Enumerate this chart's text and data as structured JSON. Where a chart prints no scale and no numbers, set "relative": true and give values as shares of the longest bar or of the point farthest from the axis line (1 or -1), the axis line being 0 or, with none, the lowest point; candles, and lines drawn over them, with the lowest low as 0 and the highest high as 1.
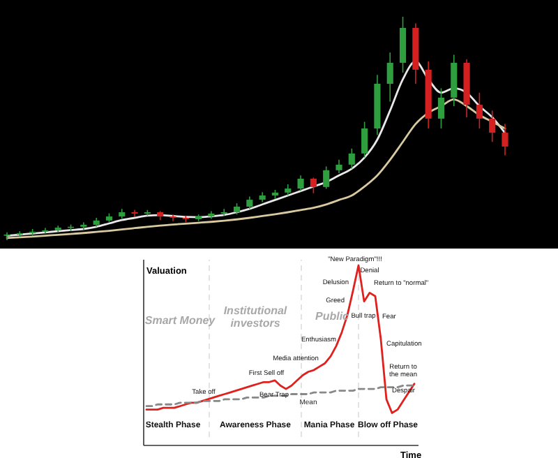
{
  "chart_data": [
    {
      "type": "candlestick",
      "relative": true,
      "categories": [
        null,
        null,
        null,
        null,
        null,
        null,
        null,
        null,
        null,
        null,
        null,
        null,
        null,
        null,
        null,
        null,
        null,
        null,
        null,
        null,
        null,
        null,
        null,
        null,
        null,
        null,
        null,
        null,
        null,
        null,
        null,
        null,
        null,
        null,
        null,
        null,
        null,
        null,
        null,
        null
      ],
      "ohlc": [
        [
          0.02,
          0.035,
          0,
          0.025
        ],
        [
          0.025,
          0.04,
          0.015,
          0.031
        ],
        [
          0.031,
          0.05,
          0.022,
          0.038
        ],
        [
          0.038,
          0.055,
          0.03,
          0.044
        ],
        [
          0.044,
          0.065,
          0.035,
          0.056
        ],
        [
          0.056,
          0.07,
          0.04,
          0.06
        ],
        [
          0.06,
          0.08,
          0.045,
          0.069
        ],
        [
          0.069,
          0.1,
          0.06,
          0.088
        ],
        [
          0.088,
          0.12,
          0.08,
          0.106
        ],
        [
          0.106,
          0.14,
          0.095,
          0.125
        ],
        [
          0.125,
          0.135,
          0.105,
          0.119
        ],
        [
          0.119,
          0.135,
          0.11,
          0.125
        ],
        [
          0.125,
          0.13,
          0.09,
          0.106
        ],
        [
          0.106,
          0.115,
          0.085,
          0.1
        ],
        [
          0.1,
          0.11,
          0.08,
          0.094
        ],
        [
          0.094,
          0.115,
          0.085,
          0.106
        ],
        [
          0.106,
          0.13,
          0.095,
          0.119
        ],
        [
          0.119,
          0.14,
          0.11,
          0.125
        ],
        [
          0.125,
          0.165,
          0.115,
          0.15
        ],
        [
          0.15,
          0.195,
          0.14,
          0.181
        ],
        [
          0.181,
          0.215,
          0.17,
          0.2
        ],
        [
          0.2,
          0.225,
          0.185,
          0.213
        ],
        [
          0.213,
          0.25,
          0.2,
          0.231
        ],
        [
          0.231,
          0.29,
          0.22,
          0.275
        ],
        [
          0.275,
          0.28,
          0.21,
          0.238
        ],
        [
          0.238,
          0.33,
          0.23,
          0.313
        ],
        [
          0.313,
          0.36,
          0.3,
          0.338
        ],
        [
          0.338,
          0.41,
          0.32,
          0.388
        ],
        [
          0.388,
          0.53,
          0.37,
          0.5
        ],
        [
          0.5,
          0.74,
          0.47,
          0.7
        ],
        [
          0.7,
          0.84,
          0.62,
          0.794
        ],
        [
          0.794,
          1,
          0.75,
          0.95
        ],
        [
          0.95,
          0.97,
          0.7,
          0.763
        ],
        [
          0.763,
          0.8,
          0.5,
          0.544
        ],
        [
          0.544,
          0.68,
          0.5,
          0.638
        ],
        [
          0.638,
          0.83,
          0.6,
          0.794
        ],
        [
          0.794,
          0.81,
          0.55,
          0.606
        ],
        [
          0.606,
          0.66,
          0.5,
          0.544
        ],
        [
          0.544,
          0.58,
          0.44,
          0.481
        ],
        [
          0.481,
          0.52,
          0.38,
          0.419
        ]
      ],
      "colors": [
        "#2e9e3e",
        "#2e9e3e",
        "#2e9e3e",
        "#2e9e3e",
        "#2e9e3e",
        "#2e9e3e",
        "#2e9e3e",
        "#2e9e3e",
        "#2e9e3e",
        "#2e9e3e",
        "#d42020",
        "#2e9e3e",
        "#d42020",
        "#d42020",
        "#d42020",
        "#2e9e3e",
        "#2e9e3e",
        "#2e9e3e",
        "#2e9e3e",
        "#2e9e3e",
        "#2e9e3e",
        "#2e9e3e",
        "#2e9e3e",
        "#2e9e3e",
        "#d42020",
        "#2e9e3e",
        "#2e9e3e",
        "#2e9e3e",
        "#2e9e3e",
        "#2e9e3e",
        "#2e9e3e",
        "#2e9e3e",
        "#d42020",
        "#d42020",
        "#2e9e3e",
        "#2e9e3e",
        "#d42020",
        "#d42020",
        "#d42020",
        "#d42020"
      ],
      "series": [
        {
          "type": "line",
          "color": "#e8e8e8",
          "values": [
            0.02,
            0.025,
            0.03,
            0.035,
            0.04,
            0.045,
            0.05,
            0.06,
            0.075,
            0.09,
            0.1,
            0.11,
            0.112,
            0.108,
            0.104,
            0.103,
            0.107,
            0.113,
            0.125,
            0.14,
            0.16,
            0.18,
            0.2,
            0.22,
            0.24,
            0.26,
            0.29,
            0.32,
            0.37,
            0.45,
            0.58,
            0.72,
            0.8,
            0.72,
            0.66,
            0.68,
            0.66,
            0.6,
            0.55,
            0.48
          ]
        },
        {
          "type": "line",
          "color": "#d8c9a0",
          "values": [
            0.01,
            0.013,
            0.016,
            0.02,
            0.024,
            0.028,
            0.032,
            0.037,
            0.042,
            0.048,
            0.054,
            0.06,
            0.065,
            0.07,
            0.074,
            0.078,
            0.082,
            0.087,
            0.093,
            0.1,
            0.108,
            0.116,
            0.125,
            0.135,
            0.145,
            0.16,
            0.18,
            0.2,
            0.24,
            0.29,
            0.36,
            0.44,
            0.52,
            0.57,
            0.6,
            0.63,
            0.6,
            0.56,
            0.53,
            0.5
          ]
        }
      ]
    },
    {
      "type": "line",
      "relative": true,
      "xlabel": "Time",
      "ylabel": "Valuation",
      "categories": [
        null,
        null,
        null,
        null,
        null,
        null,
        null,
        null,
        null,
        null,
        null,
        null,
        null,
        null,
        null,
        null,
        null,
        null,
        null,
        null,
        null,
        null,
        null,
        null,
        null,
        null,
        null,
        null,
        null,
        null,
        null,
        null,
        null,
        null,
        null,
        null,
        null,
        null,
        null,
        null,
        null,
        null,
        null,
        null,
        null,
        null,
        null,
        null,
        null
      ],
      "series": [
        {
          "color": "#e0201c",
          "values": [
            0.16,
            0.16,
            0.16,
            0.17,
            0.17,
            0.17,
            0.18,
            0.19,
            0.2,
            0.2,
            0.21,
            0.22,
            0.23,
            0.24,
            0.25,
            0.26,
            0.27,
            0.28,
            0.29,
            0.3,
            0.31,
            0.32,
            0.32,
            0.33,
            0.3,
            0.28,
            0.3,
            0.33,
            0.36,
            0.38,
            0.39,
            0.41,
            0.43,
            0.47,
            0.53,
            0.61,
            0.71,
            0.85,
            1,
            0.79,
            0.84,
            0.82,
            0.57,
            0.22,
            0.14,
            0.16,
            0.21,
            0.26,
            0.31
          ]
        },
        {
          "name": "Mean",
          "type": "line",
          "line_style": "dashed",
          "color": "#888888",
          "values": [
            0.18,
            0.18,
            0.19,
            0.19,
            0.19,
            0.19,
            0.2,
            0.2,
            0.2,
            0.2,
            0.21,
            0.21,
            0.21,
            0.21,
            0.22,
            0.22,
            0.22,
            0.22,
            0.23,
            0.23,
            0.23,
            0.23,
            0.24,
            0.24,
            0.24,
            0.24,
            0.25,
            0.25,
            0.25,
            0.25,
            0.26,
            0.26,
            0.26,
            0.26,
            0.27,
            0.27,
            0.27,
            0.27,
            0.28,
            0.28,
            0.28,
            0.28,
            0.29,
            0.29,
            0.29,
            0.29,
            0.3,
            0.3,
            0.3
          ]
        }
      ],
      "annotations": [
        "Take off",
        "First Sell off",
        "Bear Trap",
        "Media attention",
        "Enthusiasm",
        "Greed",
        "Delusion",
        "\"New Paradigm\"!!!",
        "Denial",
        "Bull trap",
        "Return to \"normal\"",
        "Fear",
        "Capitulation",
        "Despair",
        "Return to the mean",
        "Smart Money",
        "Institutional investors",
        "Public",
        "Stealth Phase",
        "Awareness Phase",
        "Mania Phase",
        "Blow off Phase"
      ]
    }
  ]
}
